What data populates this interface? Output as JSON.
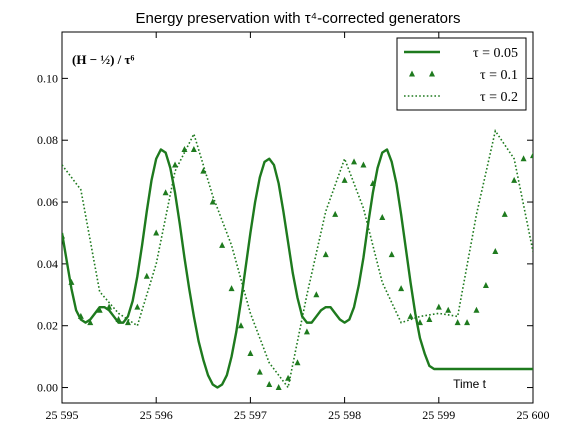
{
  "chart_data": {
    "type": "line",
    "title": "Energy preservation with τ⁴-corrected generators",
    "ylabel_annotation": "(H − ½) / τ⁶",
    "xlabel": "Time t",
    "xlim": [
      25595,
      25600
    ],
    "ylim": [
      -0.005,
      0.115
    ],
    "xticks": [
      25595,
      25596,
      25597,
      25598,
      25599,
      25600
    ],
    "xtick_labels": [
      "25 595",
      "25 596",
      "25 597",
      "25 598",
      "25 599",
      "25 600"
    ],
    "yticks": [
      0.0,
      0.02,
      0.04,
      0.06,
      0.08,
      0.1
    ],
    "ytick_labels": [
      "0.00",
      "0.02",
      "0.04",
      "0.06",
      "0.08",
      "0.10"
    ],
    "legend_position": "top-right",
    "colors": {
      "series": "#1e7a1e"
    },
    "series": [
      {
        "name": "τ = 0.05",
        "style": "solid",
        "x": [
          25595.0,
          25595.05,
          25595.1,
          25595.15,
          25595.2,
          25595.25,
          25595.3,
          25595.35,
          25595.4,
          25595.45,
          25595.5,
          25595.55,
          25595.6,
          25595.65,
          25595.7,
          25595.75,
          25595.8,
          25595.85,
          25595.9,
          25595.95,
          25596.0,
          25596.05,
          25596.1,
          25596.15,
          25596.2,
          25596.25,
          25596.3,
          25596.35,
          25596.4,
          25596.45,
          25596.5,
          25596.55,
          25596.6,
          25596.65,
          25596.7,
          25596.75,
          25596.8,
          25596.85,
          25596.9,
          25596.95,
          25597.0,
          25597.05,
          25597.1,
          25597.15,
          25597.2,
          25597.25,
          25597.3,
          25597.35,
          25597.4,
          25597.45,
          25597.5,
          25597.55,
          25597.6,
          25597.65,
          25597.7,
          25597.75,
          25597.8,
          25597.85,
          25597.9,
          25597.95,
          25598.0,
          25598.05,
          25598.1,
          25598.15,
          25598.2,
          25598.25,
          25598.3,
          25598.35,
          25598.4,
          25598.45,
          25598.5,
          25598.55,
          25598.6,
          25598.65,
          25598.7,
          25598.75,
          25598.8,
          25598.85,
          25598.9,
          25598.95,
          25599.0,
          25599.05,
          25599.1,
          25599.15,
          25599.2,
          25599.25,
          25599.3,
          25599.35,
          25599.4,
          25599.45,
          25599.5,
          25599.55,
          25599.6,
          25599.65,
          25599.7,
          25599.75,
          25599.8,
          25599.85,
          25599.9,
          25599.95,
          25600.0
        ],
        "y": [
          0.05,
          0.041,
          0.032,
          0.025,
          0.022,
          0.021,
          0.022,
          0.024,
          0.026,
          0.026,
          0.025,
          0.023,
          0.021,
          0.021,
          0.023,
          0.028,
          0.036,
          0.046,
          0.057,
          0.067,
          0.074,
          0.077,
          0.076,
          0.071,
          0.063,
          0.053,
          0.042,
          0.032,
          0.023,
          0.015,
          0.009,
          0.004,
          0.001,
          0.0,
          0.001,
          0.004,
          0.01,
          0.018,
          0.028,
          0.039,
          0.05,
          0.06,
          0.068,
          0.073,
          0.074,
          0.072,
          0.066,
          0.057,
          0.047,
          0.037,
          0.029,
          0.023,
          0.021,
          0.021,
          0.023,
          0.025,
          0.026,
          0.026,
          0.024,
          0.022,
          0.021,
          0.022,
          0.026,
          0.033,
          0.042,
          0.053,
          0.063,
          0.071,
          0.076,
          0.077,
          0.073,
          0.066,
          0.056,
          0.045,
          0.034,
          0.024,
          0.016,
          0.011,
          0.007,
          0.006,
          0.006,
          0.006,
          0.006,
          0.006,
          0.006,
          0.006,
          0.006,
          0.006,
          0.006,
          0.006,
          0.006,
          0.006,
          0.006,
          0.006,
          0.006,
          0.006,
          0.006,
          0.006,
          0.006,
          0.006,
          0.006
        ]
      },
      {
        "name": "τ = 0.1",
        "style": "triangles",
        "x": [
          25595.0,
          25595.1,
          25595.2,
          25595.3,
          25595.4,
          25595.5,
          25595.6,
          25595.7,
          25595.8,
          25595.9,
          25596.0,
          25596.1,
          25596.2,
          25596.3,
          25596.4,
          25596.5,
          25596.6,
          25596.7,
          25596.8,
          25596.9,
          25597.0,
          25597.1,
          25597.2,
          25597.3,
          25597.4,
          25597.5,
          25597.6,
          25597.7,
          25597.8,
          25597.9,
          25598.0,
          25598.1,
          25598.2,
          25598.3,
          25598.4,
          25598.5,
          25598.6,
          25598.7,
          25598.8,
          25598.9,
          25599.0,
          25599.1,
          25599.2,
          25599.3,
          25599.4,
          25599.5,
          25599.6,
          25599.7,
          25599.8,
          25599.9,
          25600.0
        ],
        "y": [
          0.049,
          0.034,
          0.023,
          0.021,
          0.025,
          0.026,
          0.022,
          0.021,
          0.026,
          0.036,
          0.05,
          0.063,
          0.072,
          0.077,
          0.077,
          0.07,
          0.06,
          0.046,
          0.032,
          0.02,
          0.011,
          0.005,
          0.001,
          0.0,
          0.003,
          0.008,
          0.018,
          0.03,
          0.043,
          0.056,
          0.067,
          0.073,
          0.072,
          0.066,
          0.055,
          0.043,
          0.032,
          0.023,
          0.021,
          0.022,
          0.026,
          0.025,
          0.021,
          0.021,
          0.025,
          0.033,
          0.044,
          0.056,
          0.067,
          0.074,
          0.075
        ]
      },
      {
        "name": "τ = 0.2",
        "style": "dotted",
        "x": [
          25595.0,
          25595.2,
          25595.4,
          25595.6,
          25595.8,
          25596.0,
          25596.2,
          25596.4,
          25596.6,
          25596.8,
          25597.0,
          25597.2,
          25597.4,
          25597.6,
          25597.8,
          25598.0,
          25598.2,
          25598.4,
          25598.6,
          25598.8,
          25599.0,
          25599.2,
          25599.4,
          25599.6,
          25599.8,
          25600.0
        ],
        "y": [
          0.072,
          0.064,
          0.031,
          0.024,
          0.02,
          0.04,
          0.07,
          0.082,
          0.062,
          0.046,
          0.024,
          0.008,
          0.0,
          0.03,
          0.057,
          0.074,
          0.058,
          0.034,
          0.021,
          0.023,
          0.024,
          0.023,
          0.056,
          0.083,
          0.074,
          0.044
        ]
      }
    ]
  }
}
